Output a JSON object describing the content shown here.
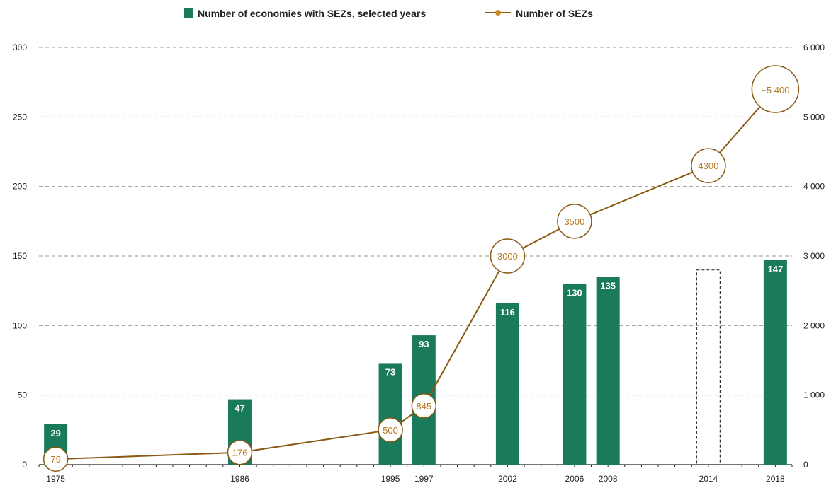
{
  "chart_data": {
    "type": "bar",
    "legend": {
      "placement": "top-center",
      "bar_series_label": "Number of economies with SEZs, selected years",
      "line_series_label": "Number of SEZs"
    },
    "x": [
      "1975",
      "1986",
      "1995",
      "1997",
      "2002",
      "2006",
      "2008",
      "2014",
      "2018"
    ],
    "x_range": [
      1974,
      2019
    ],
    "bars": {
      "name": "Number of economies with SEZs, selected years",
      "points": [
        {
          "year": "1975",
          "value": 29,
          "label": "29"
        },
        {
          "year": "1986",
          "value": 47,
          "label": "47"
        },
        {
          "year": "1995",
          "value": 73,
          "label": "73"
        },
        {
          "year": "1997",
          "value": 93,
          "label": "93"
        },
        {
          "year": "2002",
          "value": 116,
          "label": "116"
        },
        {
          "year": "2006",
          "value": 130,
          "label": "130"
        },
        {
          "year": "2008",
          "value": 135,
          "label": "135"
        },
        {
          "year": "2014",
          "value": 140,
          "label": "",
          "dashed": true
        },
        {
          "year": "2018",
          "value": 147,
          "label": "147"
        }
      ]
    },
    "line": {
      "name": "Number of SEZs",
      "points": [
        {
          "year": "1975",
          "value": 79,
          "label": "79"
        },
        {
          "year": "1986",
          "value": 176,
          "label": "176"
        },
        {
          "year": "1995",
          "value": 500,
          "label": "500"
        },
        {
          "year": "1997",
          "value": 845,
          "label": "845"
        },
        {
          "year": "2002",
          "value": 3000,
          "label": "3000"
        },
        {
          "year": "2006",
          "value": 3500,
          "label": "3500"
        },
        {
          "year": "2014",
          "value": 4300,
          "label": "4300"
        },
        {
          "year": "2018",
          "value": 5400,
          "label": "~5 400"
        }
      ]
    },
    "y_left": {
      "range": [
        0,
        300
      ],
      "ticks": [
        "0",
        "50",
        "100",
        "150",
        "200",
        "250",
        "300"
      ]
    },
    "y_right": {
      "range": [
        0,
        6000
      ],
      "ticks": [
        "0",
        "1 000",
        "2 000",
        "3 000",
        "4 000",
        "5 000",
        "6 000"
      ]
    },
    "grid": true,
    "colors": {
      "bar": "#1a7a5c",
      "line": "#8a5a12",
      "label": "#b7791f",
      "grid": "#9a9a9a"
    }
  }
}
